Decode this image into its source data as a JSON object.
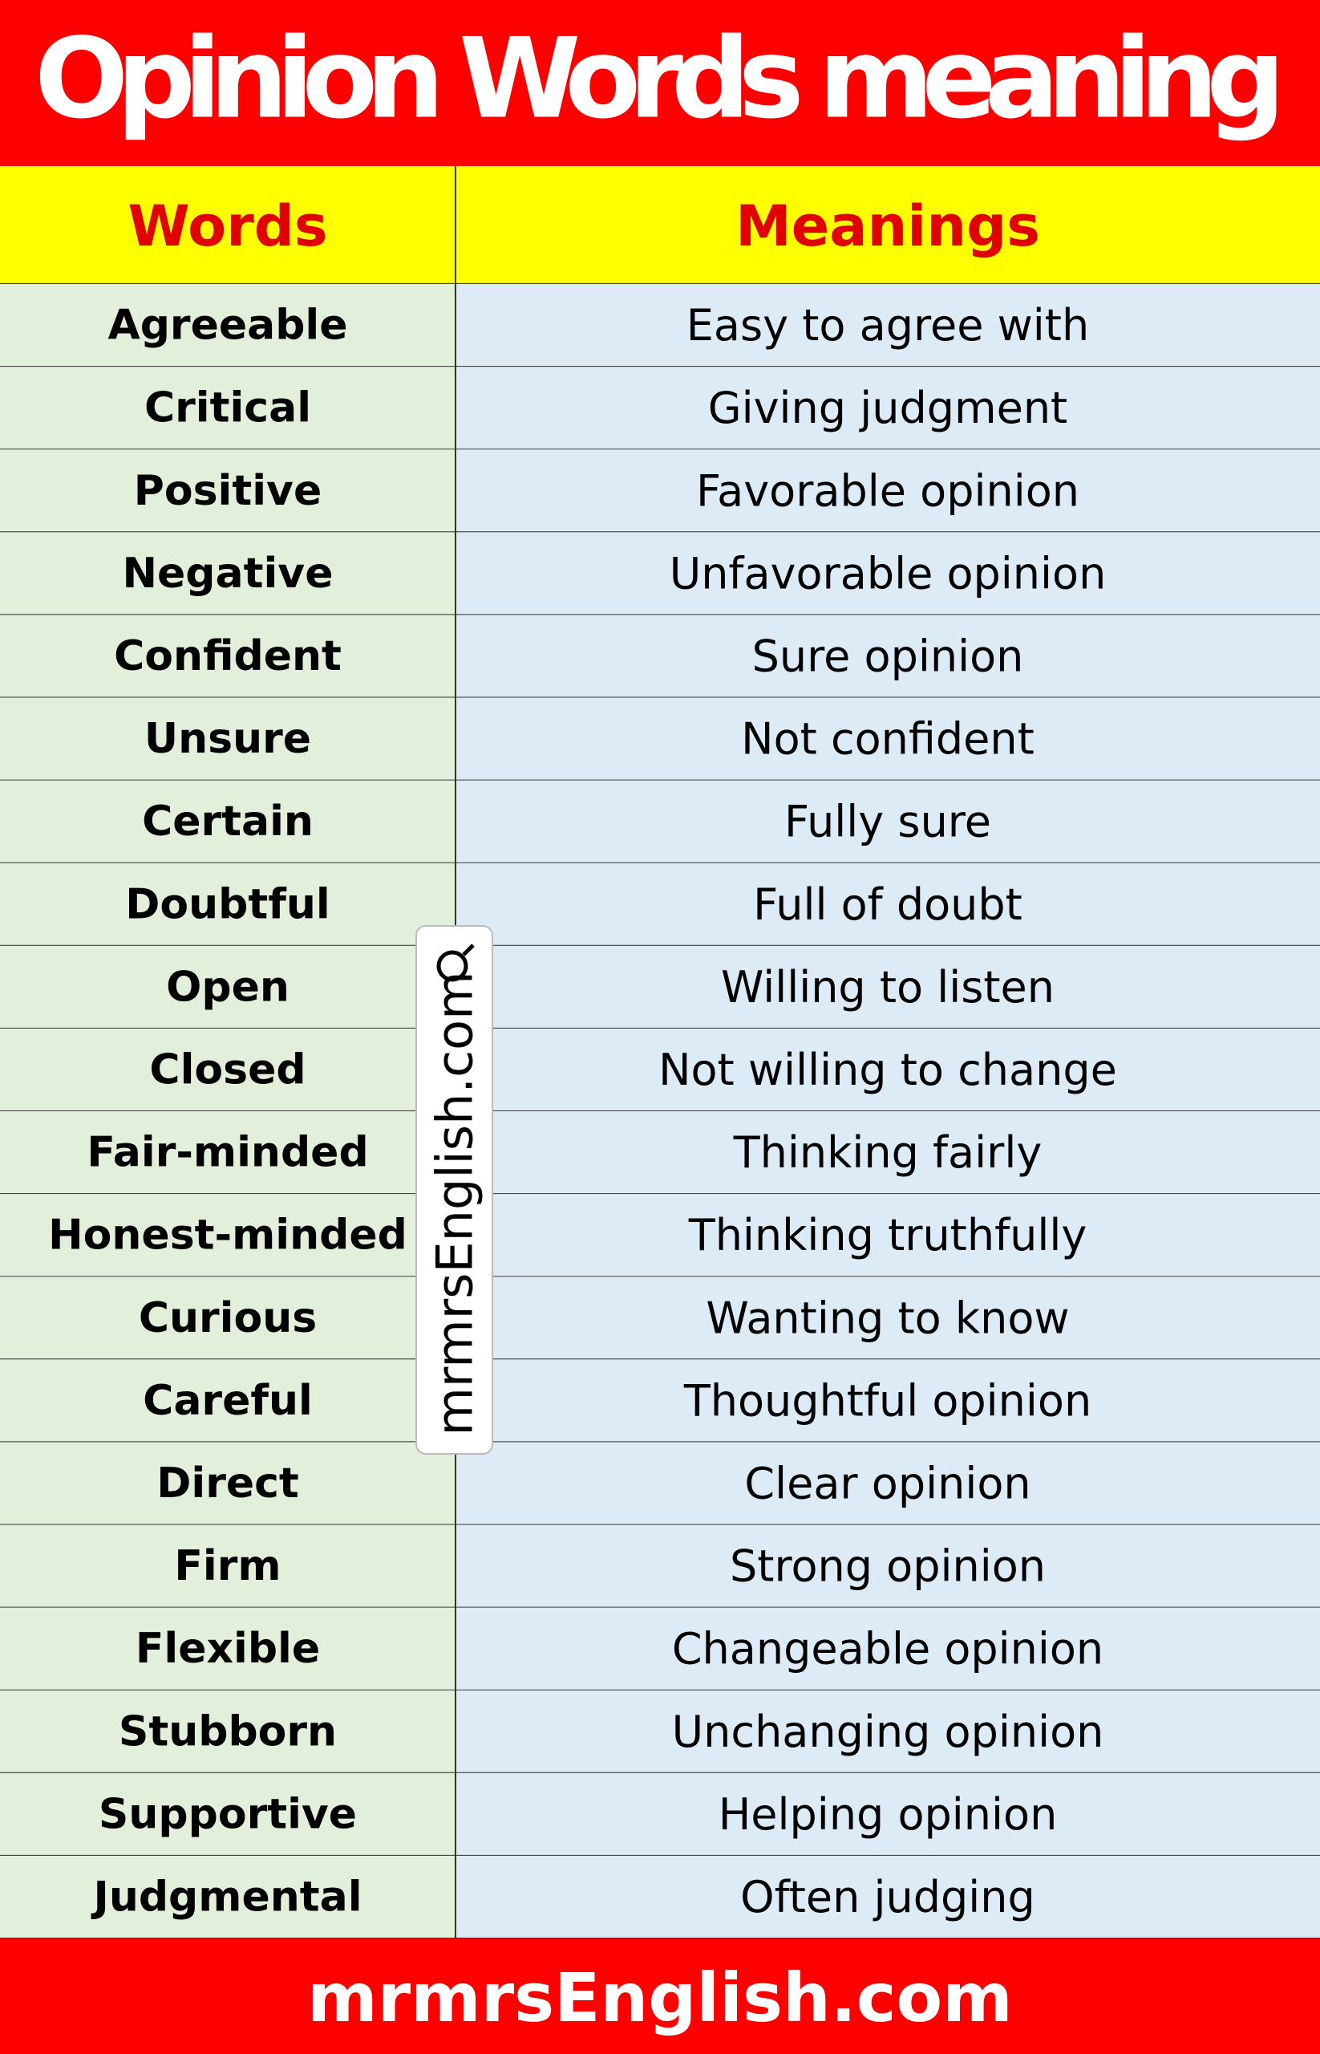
{
  "header": {
    "title": "Opinion Words meaning"
  },
  "table": {
    "columns": [
      "Words",
      "Meanings"
    ],
    "rows": [
      [
        "Agreeable",
        "Easy to agree with"
      ],
      [
        "Critical",
        "Giving judgment"
      ],
      [
        "Positive",
        "Favorable opinion"
      ],
      [
        "Negative",
        "Unfavorable opinion"
      ],
      [
        "Confident",
        "Sure opinion"
      ],
      [
        "Unsure",
        "Not confident"
      ],
      [
        "Certain",
        "Fully sure"
      ],
      [
        "Doubtful",
        "Full of doubt"
      ],
      [
        "Open",
        "Willing to listen"
      ],
      [
        "Closed",
        "Not willing to change"
      ],
      [
        "Fair-minded",
        "Thinking fairly"
      ],
      [
        "Honest-minded",
        "Thinking truthfully"
      ],
      [
        "Curious",
        "Wanting to know"
      ],
      [
        "Careful",
        "Thoughtful opinion"
      ],
      [
        "Direct",
        "Clear opinion"
      ],
      [
        "Firm",
        "Strong opinion"
      ],
      [
        "Flexible",
        "Changeable opinion"
      ],
      [
        "Stubborn",
        "Unchanging opinion"
      ],
      [
        "Supportive",
        "Helping opinion"
      ],
      [
        "Judgmental",
        "Often judging"
      ]
    ]
  },
  "watermark": "mrmrsEnglish.com",
  "footer": "mrmrsEnglish.com"
}
